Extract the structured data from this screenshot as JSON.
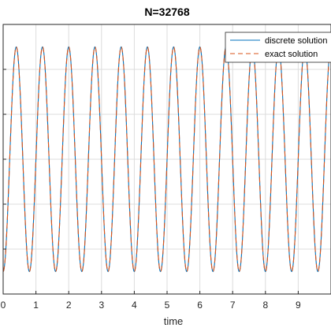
{
  "chart_data": {
    "type": "line",
    "title": "N=32768",
    "xlabel": "time",
    "ylabel": "",
    "xlim": [
      0,
      10
    ],
    "ylim": [
      -1.2,
      1.2
    ],
    "x_ticks": [
      0,
      1,
      2,
      3,
      4,
      5,
      6,
      7,
      8,
      9,
      10
    ],
    "x_tick_labels": [
      "0",
      "1",
      "2",
      "3",
      "4",
      "5",
      "6",
      "7",
      "8",
      "9",
      ""
    ],
    "y_ticks": [
      -1.2,
      -0.8,
      -0.4,
      0,
      0.4,
      0.8,
      1.2
    ],
    "grid": true,
    "legend": "top-right",
    "wave": {
      "form": "cosine",
      "amplitude": 1,
      "period": 0.8,
      "peak_times": [
        0.4,
        1.2,
        2.0,
        2.8,
        3.6,
        4.4,
        5.2,
        6.0,
        6.8,
        7.6,
        8.4,
        9.2
      ],
      "trough_times": [
        0.8,
        1.6,
        2.4,
        3.2,
        4.0,
        4.8,
        5.6,
        6.4,
        7.2,
        8.0,
        8.8,
        9.6
      ]
    },
    "series": [
      {
        "name": "discrete solution",
        "style": "solid",
        "color": "#0072BD"
      },
      {
        "name": "exact solution",
        "style": "dashed",
        "color": "#D95319"
      }
    ]
  }
}
